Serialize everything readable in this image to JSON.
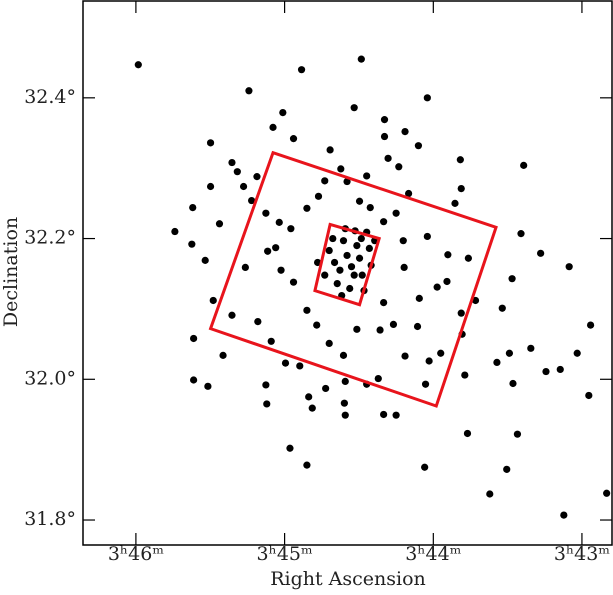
{
  "chart_data": {
    "type": "scatter",
    "xlabel": "Right Ascension",
    "ylabel": "Declination",
    "color": "#000000",
    "xlim": [
      3.7726,
      3.7133
    ],
    "ylim": [
      31.7645,
      32.5376
    ],
    "xticks": [
      {
        "value": 3.76667,
        "label": "3ʰ46ᵐ"
      },
      {
        "value": 3.75,
        "label": "3ʰ45ᵐ"
      },
      {
        "value": 3.73333,
        "label": "3ʰ44ᵐ"
      },
      {
        "value": 3.71667,
        "label": "3ʰ43ᵐ"
      }
    ],
    "yticks": [
      {
        "value": 31.8,
        "label": "31.8°"
      },
      {
        "value": 32.0,
        "label": "32.0°"
      },
      {
        "value": 32.2,
        "label": "32.2°"
      },
      {
        "value": 32.4,
        "label": "32.4°"
      }
    ],
    "x": [
      3.7664,
      3.7481,
      3.7414,
      3.734,
      3.754,
      3.7502,
      3.7623,
      3.7603,
      3.7604,
      3.7573,
      3.7583,
      3.7513,
      3.7559,
      3.7553,
      3.7583,
      3.7589,
      3.758,
      3.7602,
      3.7602,
      3.7586,
      3.7569,
      3.7521,
      3.752,
      3.7494,
      3.7475,
      3.7432,
      3.7433,
      3.7389,
      3.7375,
      3.7343,
      3.7295,
      3.727,
      3.7251,
      3.7239,
      3.7187,
      3.7139,
      3.7159,
      3.7172,
      3.7191,
      3.7207,
      3.7262,
      3.7248,
      3.7224,
      3.7244,
      3.7256,
      3.7245,
      3.7213,
      3.7181,
      3.7157,
      3.7235,
      3.7232,
      3.7303,
      3.7302,
      3.7309,
      3.735,
      3.7365,
      3.7388,
      3.7388,
      3.7422,
      3.7449,
      3.749,
      3.7531,
      3.7546,
      3.7537,
      3.7521,
      3.7506,
      3.7544,
      3.7559,
      3.753,
      3.7515,
      3.7499,
      3.7483,
      3.7473,
      3.7469,
      3.7454,
      3.7432,
      3.7408,
      3.7395,
      3.7365,
      3.7338,
      3.7325,
      3.7301,
      3.7302,
      3.7329,
      3.7349,
      3.7351,
      3.7366,
      3.7367,
      3.734,
      3.7317,
      3.7318,
      3.7294,
      3.7286,
      3.7298,
      3.7342,
      3.7378,
      3.7389,
      3.7393,
      3.7419,
      3.7434,
      3.745,
      3.7464,
      3.7475,
      3.749,
      3.7504,
      3.7519,
      3.751,
      3.7493,
      3.7475,
      3.7462,
      3.7455,
      3.7437,
      3.743,
      3.7408,
      3.7384,
      3.7372,
      3.7361,
      3.7375,
      3.7389,
      3.7404,
      3.7416,
      3.745,
      3.7444,
      3.7438,
      3.7434,
      3.743,
      3.7425,
      3.7419,
      3.7416,
      3.7413,
      3.7408,
      3.7405,
      3.7403,
      3.7441,
      3.7427,
      3.7455,
      3.7463,
      3.7421,
      3.7432,
      3.7411,
      3.7399,
      3.7436,
      3.7422,
      3.7446,
      3.7414
    ],
    "y": [
      32.447,
      32.44,
      32.455,
      32.4,
      32.41,
      32.379,
      32.21,
      32.244,
      32.192,
      32.221,
      32.336,
      32.358,
      32.308,
      32.295,
      32.274,
      32.169,
      32.112,
      32.058,
      31.999,
      31.99,
      32.034,
      31.992,
      31.965,
      31.902,
      31.878,
      31.949,
      31.966,
      31.95,
      31.949,
      31.875,
      31.923,
      31.837,
      31.872,
      31.922,
      31.807,
      31.838,
      31.977,
      32.037,
      32.014,
      32.011,
      32.024,
      32.037,
      32.044,
      31.994,
      32.101,
      32.143,
      32.179,
      32.16,
      32.077,
      32.207,
      32.304,
      32.312,
      32.271,
      32.25,
      32.332,
      32.352,
      32.369,
      32.345,
      32.386,
      32.326,
      32.342,
      32.288,
      32.274,
      32.254,
      32.236,
      32.223,
      32.159,
      32.091,
      32.082,
      32.054,
      32.023,
      32.019,
      31.975,
      31.959,
      31.987,
      31.997,
      31.993,
      32.001,
      32.033,
      32.026,
      32.037,
      32.064,
      32.094,
      32.131,
      32.115,
      32.075,
      32.159,
      32.197,
      32.203,
      32.177,
      32.139,
      32.172,
      32.112,
      32.006,
      31.993,
      32.078,
      32.109,
      32.07,
      32.071,
      32.034,
      32.051,
      32.077,
      32.098,
      32.138,
      32.155,
      32.182,
      32.187,
      32.214,
      32.243,
      32.26,
      32.282,
      32.299,
      32.281,
      32.289,
      32.314,
      32.302,
      32.264,
      32.236,
      32.224,
      32.244,
      32.253,
      32.183,
      32.166,
      32.155,
      32.197,
      32.176,
      32.16,
      32.19,
      32.172,
      32.148,
      32.209,
      32.186,
      32.162,
      32.136,
      32.129,
      32.148,
      32.166,
      32.211,
      32.214,
      32.126,
      32.197,
      32.119,
      32.148,
      32.2,
      32.2
    ],
    "regions": [
      {
        "color": "#e8141c",
        "x": [
          3.7513,
          3.7263,
          3.733,
          3.7583
        ],
        "y": [
          32.322,
          32.216,
          31.962,
          32.072
        ]
      },
      {
        "color": "#e8141c",
        "x": [
          3.7449,
          3.7394,
          3.7416,
          3.7466
        ],
        "y": [
          32.22,
          32.2,
          32.106,
          32.126
        ]
      }
    ]
  }
}
